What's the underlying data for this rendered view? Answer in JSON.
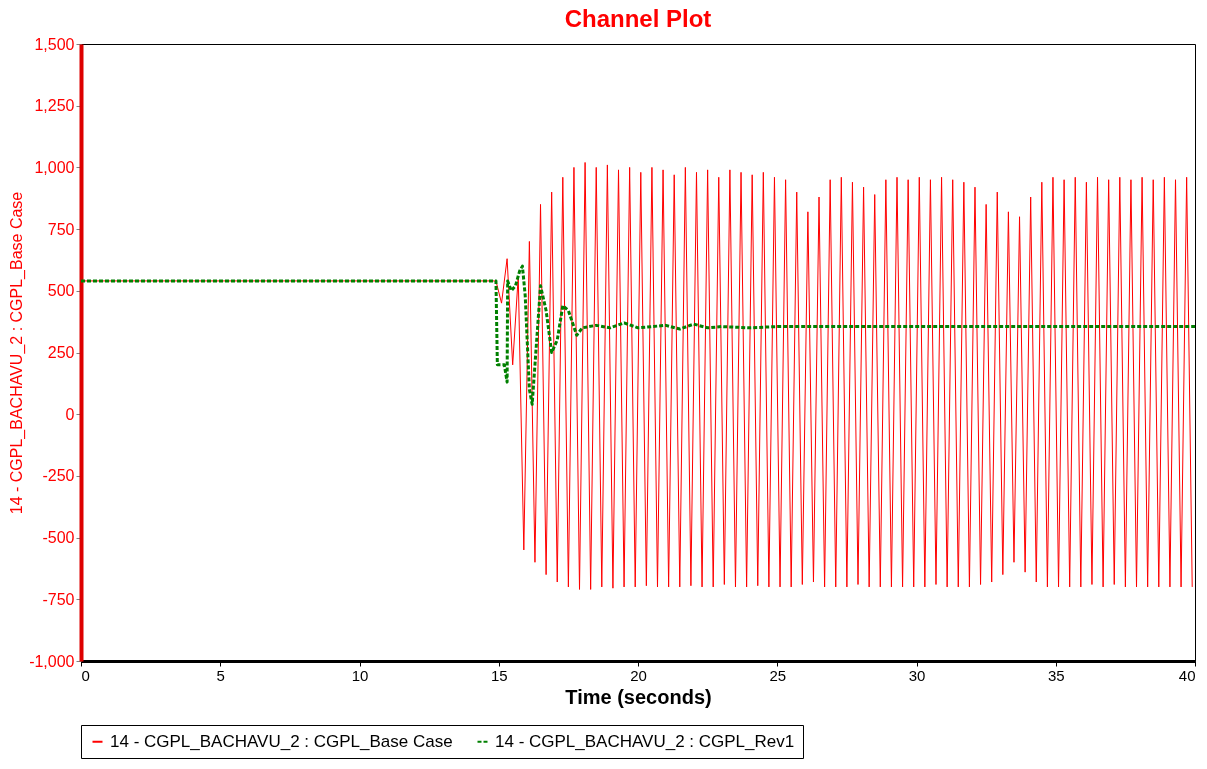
{
  "chart_data": {
    "type": "line",
    "title": "Channel Plot",
    "xlabel": "Time (seconds)",
    "ylabel": "14 - CGPL_BACHAVU_2 : CGPL_Base Case",
    "xlim": [
      0,
      40
    ],
    "xticks": [
      0,
      5,
      10,
      15,
      20,
      25,
      30,
      35,
      40
    ],
    "ylim": [
      -1000,
      1500
    ],
    "yticks": [
      {
        "value": -1000,
        "label": "-1,000"
      },
      {
        "value": -750,
        "label": "-750"
      },
      {
        "value": -500,
        "label": "-500"
      },
      {
        "value": -250,
        "label": "-250"
      },
      0,
      250,
      500,
      750,
      {
        "value": 1000,
        "label": "1,000"
      },
      {
        "value": 1250,
        "label": "1,250"
      },
      {
        "value": 1500,
        "label": "1,500"
      }
    ],
    "grid": false,
    "legend": "bottom",
    "marker": "none",
    "series": [
      {
        "name": "14 - CGPL_BACHAVU_2 : CGPL_Base Case",
        "color": "#ff0000",
        "line_style": "solid",
        "x": [
          0,
          14.9,
          15.1,
          15.3,
          15.5,
          15.7,
          15.9,
          16.1,
          16.3,
          16.5,
          16.7,
          16.9,
          17.1,
          17.3,
          17.5,
          17.7,
          17.9,
          18.1,
          18.3,
          18.5,
          18.7,
          18.9,
          19.1,
          19.3,
          19.5,
          19.7,
          19.9,
          20.1,
          20.3,
          20.5,
          20.7,
          20.9,
          21.1,
          21.3,
          21.5,
          21.7,
          21.9,
          22.1,
          22.3,
          22.5,
          22.7,
          22.9,
          23.1,
          23.3,
          23.5,
          23.7,
          23.9,
          24.1,
          24.3,
          24.5,
          24.7,
          24.9,
          25.1,
          25.3,
          25.5,
          25.7,
          25.9,
          26.1,
          26.3,
          26.5,
          26.7,
          26.9,
          27.1,
          27.3,
          27.5,
          27.7,
          27.9,
          28.1,
          28.3,
          28.5,
          28.7,
          28.9,
          29.1,
          29.3,
          29.5,
          29.7,
          29.9,
          30.1,
          30.3,
          30.5,
          30.7,
          30.9,
          31.1,
          31.3,
          31.5,
          31.7,
          31.9,
          32.1,
          32.3,
          32.5,
          32.7,
          32.9,
          33.1,
          33.3,
          33.5,
          33.7,
          33.9,
          34.1,
          34.3,
          34.5,
          34.7,
          34.9,
          35.1,
          35.3,
          35.5,
          35.7,
          35.9,
          36.1,
          36.3,
          36.5,
          36.7,
          36.9,
          37.1,
          37.3,
          37.5,
          37.7,
          37.9,
          38.1,
          38.3,
          38.5,
          38.7,
          38.9,
          39.1,
          39.3,
          39.5,
          39.7,
          39.9
        ],
        "values": [
          540,
          540,
          450,
          630,
          200,
          560,
          -550,
          700,
          -600,
          850,
          -650,
          900,
          -680,
          960,
          -700,
          1000,
          -710,
          1020,
          -710,
          1000,
          -700,
          1010,
          -705,
          990,
          -700,
          1000,
          -700,
          980,
          -695,
          1000,
          -700,
          990,
          -700,
          970,
          -700,
          1000,
          -695,
          980,
          -700,
          990,
          -700,
          960,
          -690,
          990,
          -700,
          980,
          -700,
          970,
          -695,
          980,
          -700,
          960,
          -700,
          950,
          -700,
          900,
          -690,
          820,
          -680,
          880,
          -700,
          950,
          -700,
          960,
          -700,
          940,
          -690,
          920,
          -700,
          890,
          -700,
          950,
          -700,
          960,
          -700,
          950,
          -700,
          960,
          -700,
          950,
          -690,
          960,
          -700,
          950,
          -700,
          940,
          -700,
          920,
          -690,
          850,
          -680,
          900,
          -650,
          820,
          -600,
          800,
          -640,
          880,
          -680,
          940,
          -700,
          960,
          -700,
          950,
          -700,
          960,
          -700,
          940,
          -690,
          960,
          -700,
          950,
          -690,
          960,
          -700,
          950,
          -700,
          960,
          -700,
          950,
          -700,
          960,
          -700,
          950,
          -700,
          960,
          -700
        ]
      },
      {
        "name": "14 - CGPL_BACHAVU_2 : CGPL_Rev1",
        "color": "#008000",
        "line_style": "dashed",
        "x": [
          0,
          14.9,
          14.95,
          15.2,
          15.3,
          15.32,
          15.45,
          15.6,
          15.75,
          15.85,
          15.95,
          16.1,
          16.2,
          16.3,
          16.5,
          16.7,
          16.9,
          17.1,
          17.3,
          17.5,
          17.8,
          18.0,
          18.5,
          19,
          19.5,
          20,
          20.5,
          21,
          21.5,
          22,
          22.5,
          23,
          24,
          25,
          27,
          30,
          35,
          40
        ],
        "values": [
          540,
          540,
          200,
          200,
          130,
          540,
          500,
          520,
          580,
          600,
          480,
          100,
          40,
          200,
          520,
          420,
          250,
          300,
          440,
          420,
          320,
          350,
          360,
          350,
          370,
          350,
          355,
          360,
          345,
          365,
          350,
          355,
          350,
          355,
          355,
          355,
          355,
          355
        ]
      }
    ]
  }
}
